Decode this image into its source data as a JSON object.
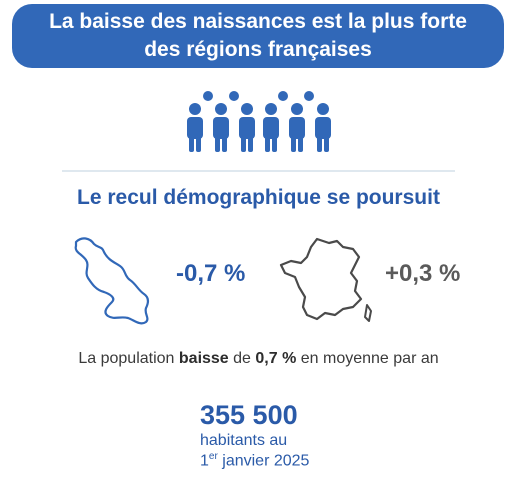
{
  "banner": {
    "line1": "La baisse des naissances est la plus forte",
    "line2": "des régions françaises"
  },
  "subtitle": "Le recul démographique se poursuit",
  "stats": {
    "martinique": "-0,7 %",
    "france": "+0,3 %"
  },
  "sentence": {
    "part1": "La population ",
    "bold1": "baisse",
    "part2": " de ",
    "bold2": "0,7 %",
    "part3": " en moyenne par an"
  },
  "population": {
    "number": "355 500",
    "caption_line1": "habitants au",
    "caption_prefix": "1",
    "caption_sup": "er",
    "caption_suffix": " janvier 2025"
  },
  "colors": {
    "primary_blue": "#3168b8",
    "text_blue": "#2a5aa8",
    "gray": "#5a5a5a"
  },
  "icons": {
    "people": "people-group-icon",
    "martinique": "martinique-map-icon",
    "france": "france-map-icon"
  }
}
